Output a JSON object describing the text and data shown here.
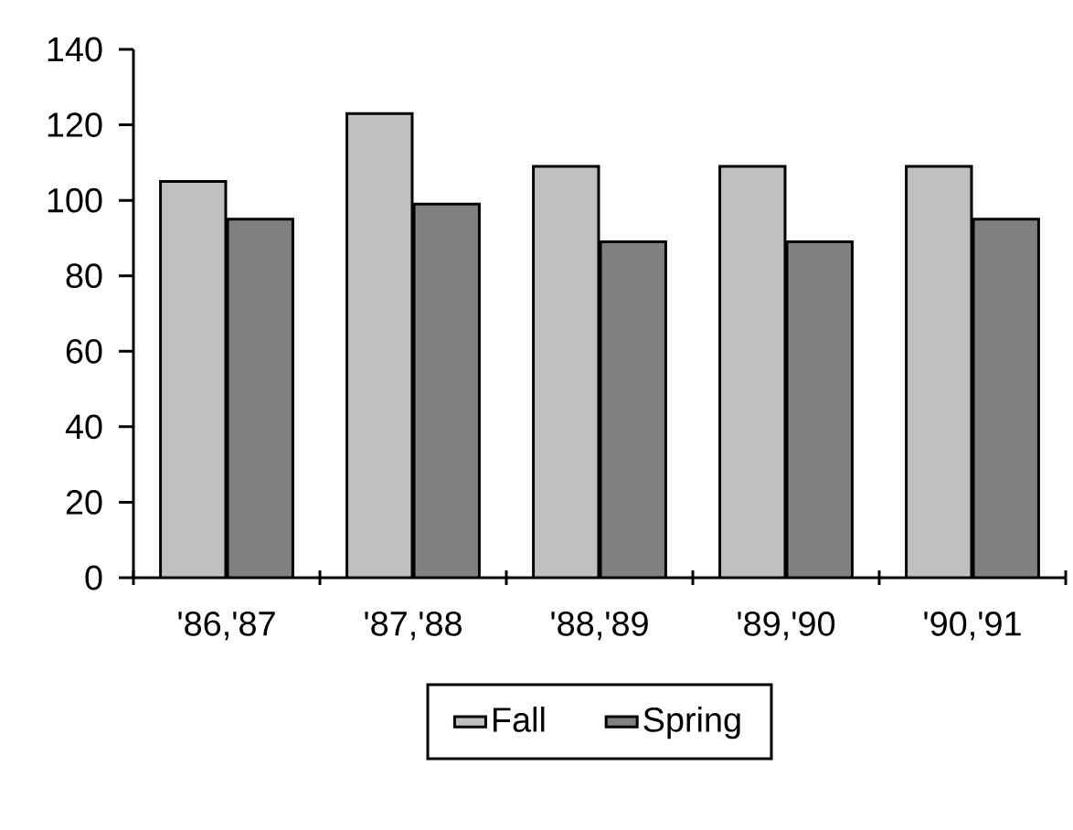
{
  "chart_data": {
    "type": "bar",
    "categories": [
      "'86,'87",
      "'87,'88",
      "'88,'89",
      "'89,'90",
      "'90,'91"
    ],
    "series": [
      {
        "name": "Fall",
        "color": "#c0c0c0",
        "values": [
          105,
          123,
          109,
          109,
          109
        ]
      },
      {
        "name": "Spring",
        "color": "#808080",
        "values": [
          95,
          99,
          89,
          89,
          95
        ]
      }
    ],
    "ylim": [
      0,
      140
    ],
    "yticks": [
      0,
      20,
      40,
      60,
      80,
      100,
      120,
      140
    ],
    "legend": "bottom"
  }
}
